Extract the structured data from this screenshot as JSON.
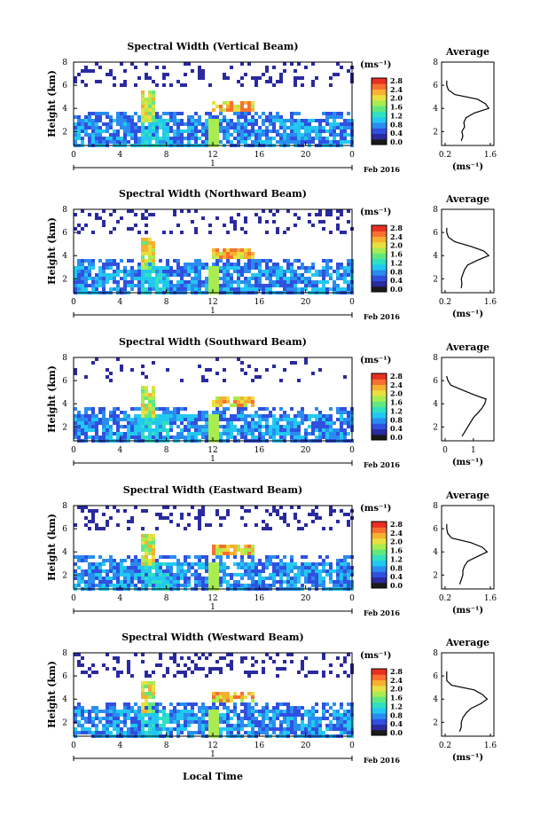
{
  "figure": {
    "xlabel": "Local Time",
    "day_label": "1",
    "date_label": "Feb 2016",
    "unit_label": "(ms⁻¹)",
    "colorbar_ticks": [
      "2.8",
      "2.4",
      "2.0",
      "1.6",
      "1.2",
      "0.8",
      "0.4",
      "0.0"
    ],
    "colormap": [
      "#1a1a1a",
      "#2a2aa0",
      "#3050e0",
      "#2a8cf0",
      "#22c8f0",
      "#30e0c0",
      "#60e880",
      "#a8ec50",
      "#e8e040",
      "#f8b030",
      "#f87030",
      "#e83020"
    ],
    "height_ticks": [
      "2",
      "4",
      "6",
      "8"
    ],
    "time_ticks": [
      "0",
      "4",
      "8",
      "12",
      "16",
      "20",
      "0"
    ],
    "avg_title": "Average",
    "avg_ylabel_ticks": [
      "2",
      "4",
      "6",
      "8"
    ]
  },
  "chart_data": [
    {
      "type": "heatmap",
      "title": "Spectral Width (Vertical Beam)",
      "ylabel": "Height (km)",
      "xlabel": "",
      "x_range": [
        0,
        24
      ],
      "y_range": [
        0.8,
        8
      ],
      "profile": {
        "title": "Average",
        "xlabel": "(ms⁻¹)",
        "xticks": [
          "0.2",
          "1.6"
        ],
        "xlim": [
          0.2,
          1.6
        ],
        "points": [
          [
            0.7,
            1.2
          ],
          [
            0.75,
            1.6
          ],
          [
            0.72,
            2.0
          ],
          [
            0.8,
            2.4
          ],
          [
            0.78,
            2.8
          ],
          [
            0.85,
            3.2
          ],
          [
            1.1,
            3.6
          ],
          [
            1.55,
            4.0
          ],
          [
            1.45,
            4.4
          ],
          [
            1.2,
            4.8
          ],
          [
            0.5,
            5.2
          ],
          [
            0.3,
            5.6
          ],
          [
            0.25,
            6.0
          ],
          [
            0.25,
            6.4
          ]
        ]
      }
    },
    {
      "type": "heatmap",
      "title": "Spectral Width (Northward Beam)",
      "ylabel": "Height (km)",
      "xlabel": "",
      "x_range": [
        0,
        24
      ],
      "y_range": [
        0.8,
        8
      ],
      "profile": {
        "title": "Average",
        "xlabel": "(ms⁻¹)",
        "xticks": [
          "0.2",
          "1.6"
        ],
        "xlim": [
          0.2,
          1.6
        ],
        "points": [
          [
            0.7,
            1.2
          ],
          [
            0.72,
            1.6
          ],
          [
            0.7,
            2.0
          ],
          [
            0.75,
            2.4
          ],
          [
            0.8,
            2.8
          ],
          [
            0.9,
            3.2
          ],
          [
            1.2,
            3.6
          ],
          [
            1.55,
            4.0
          ],
          [
            1.4,
            4.4
          ],
          [
            1.0,
            4.8
          ],
          [
            0.5,
            5.2
          ],
          [
            0.3,
            5.6
          ],
          [
            0.25,
            6.0
          ],
          [
            0.25,
            6.4
          ]
        ]
      }
    },
    {
      "type": "heatmap",
      "title": "Spectral Width (Southward Beam)",
      "ylabel": "Height (km)",
      "xlabel": "",
      "x_range": [
        0,
        24
      ],
      "y_range": [
        0.8,
        8
      ],
      "profile": {
        "title": "Average",
        "xlabel": "(ms⁻¹)",
        "xticks": [
          "0",
          "1"
        ],
        "xlim": [
          0,
          1.6
        ],
        "points": [
          [
            0.6,
            1.2
          ],
          [
            0.7,
            1.6
          ],
          [
            0.8,
            2.0
          ],
          [
            0.9,
            2.4
          ],
          [
            1.0,
            2.8
          ],
          [
            1.15,
            3.2
          ],
          [
            1.3,
            3.6
          ],
          [
            1.4,
            4.0
          ],
          [
            1.45,
            4.4
          ],
          [
            1.0,
            4.8
          ],
          [
            0.6,
            5.2
          ],
          [
            0.2,
            5.6
          ],
          [
            0.1,
            6.0
          ],
          [
            0.05,
            6.4
          ]
        ]
      }
    },
    {
      "type": "heatmap",
      "title": "Spectral Width (Eastward Beam)",
      "ylabel": "Height (km)",
      "xlabel": "",
      "x_range": [
        0,
        24
      ],
      "y_range": [
        0.8,
        8
      ],
      "profile": {
        "title": "Average",
        "xlabel": "(ms⁻¹)",
        "xticks": [
          "0.2",
          "1.6"
        ],
        "xlim": [
          0.2,
          1.6
        ],
        "points": [
          [
            0.65,
            1.2
          ],
          [
            0.7,
            1.6
          ],
          [
            0.75,
            2.0
          ],
          [
            0.75,
            2.4
          ],
          [
            0.8,
            2.8
          ],
          [
            0.9,
            3.2
          ],
          [
            1.2,
            3.6
          ],
          [
            1.5,
            4.0
          ],
          [
            1.35,
            4.4
          ],
          [
            1.0,
            4.8
          ],
          [
            0.4,
            5.2
          ],
          [
            0.28,
            5.6
          ],
          [
            0.25,
            6.0
          ],
          [
            0.25,
            6.4
          ]
        ]
      }
    },
    {
      "type": "heatmap",
      "title": "Spectral Width (Westward Beam)",
      "ylabel": "Height (km)",
      "xlabel": "",
      "x_range": [
        0,
        24
      ],
      "y_range": [
        0.8,
        8
      ],
      "profile": {
        "title": "Average",
        "xlabel": "(ms⁻¹)",
        "xticks": [
          "0.2",
          "1.6"
        ],
        "xlim": [
          0.2,
          1.6
        ],
        "points": [
          [
            0.65,
            1.2
          ],
          [
            0.7,
            1.6
          ],
          [
            0.7,
            2.0
          ],
          [
            0.75,
            2.4
          ],
          [
            0.85,
            2.8
          ],
          [
            1.0,
            3.2
          ],
          [
            1.3,
            3.6
          ],
          [
            1.5,
            4.0
          ],
          [
            1.35,
            4.4
          ],
          [
            1.1,
            4.8
          ],
          [
            0.4,
            5.2
          ],
          [
            0.25,
            5.6
          ],
          [
            0.25,
            6.0
          ],
          [
            0.25,
            6.4
          ]
        ]
      }
    }
  ]
}
